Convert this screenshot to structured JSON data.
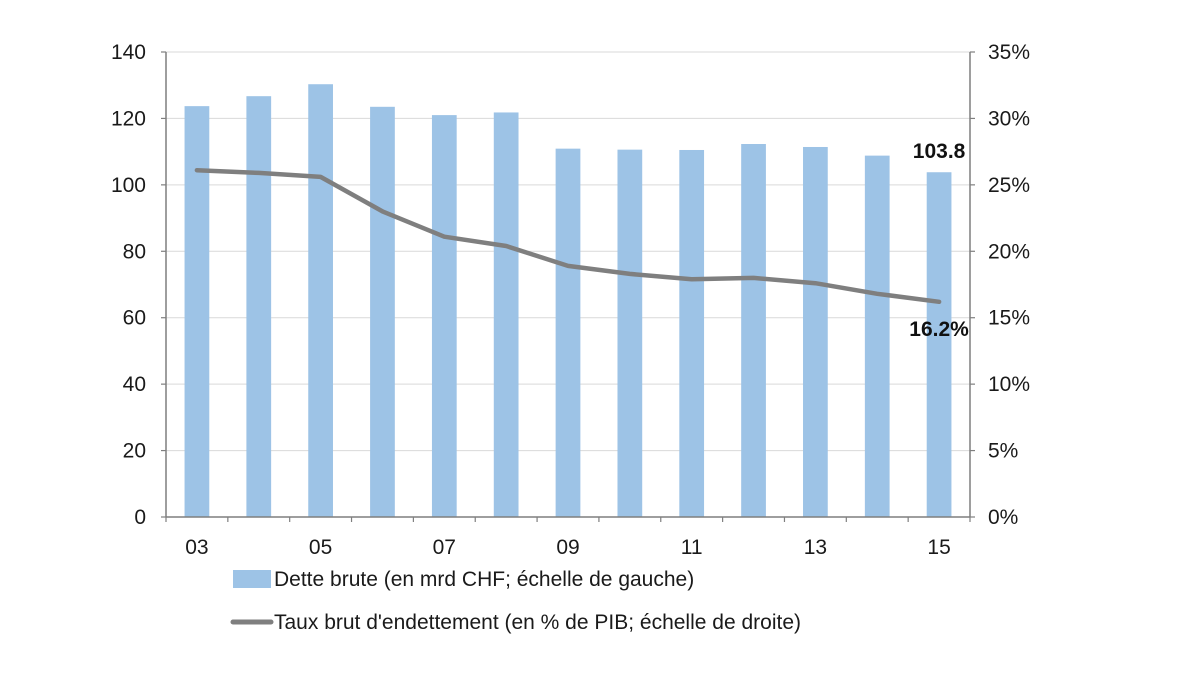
{
  "chart_data": {
    "type": "bar+line",
    "categories": [
      "03",
      "04",
      "05",
      "06",
      "07",
      "08",
      "09",
      "10",
      "11",
      "12",
      "13",
      "14",
      "15"
    ],
    "x_tick_labels": [
      "03",
      "05",
      "07",
      "09",
      "11",
      "13",
      "15"
    ],
    "series": [
      {
        "name": "Dette brute (en mrd CHF; échelle de gauche)",
        "type": "bar",
        "axis": "left",
        "color": "#9dc3e6",
        "values": [
          123.7,
          126.7,
          130.3,
          123.5,
          121.0,
          121.8,
          110.9,
          110.6,
          110.5,
          112.3,
          111.4,
          108.8,
          103.8
        ]
      },
      {
        "name": "Taux brut d'endettement (en % de PIB; échelle de droite)",
        "type": "line",
        "axis": "right",
        "color": "#7f7f7f",
        "values": [
          26.1,
          25.9,
          25.6,
          23.0,
          21.1,
          20.4,
          18.9,
          18.3,
          17.9,
          18.0,
          17.6,
          16.8,
          16.2
        ]
      }
    ],
    "y_left": {
      "min": 0,
      "max": 140,
      "step": 20,
      "ticks": [
        "0",
        "20",
        "40",
        "60",
        "80",
        "100",
        "120",
        "140"
      ]
    },
    "y_right": {
      "min": 0,
      "max": 35,
      "step": 5,
      "ticks": [
        "0%",
        "5%",
        "10%",
        "15%",
        "20%",
        "25%",
        "30%",
        "35%"
      ]
    },
    "annotations": [
      {
        "text": "103.8",
        "category": "15",
        "series": 0
      },
      {
        "text": "16.2%",
        "category": "15",
        "series": 1
      }
    ],
    "grid": true,
    "legend_position": "bottom"
  }
}
